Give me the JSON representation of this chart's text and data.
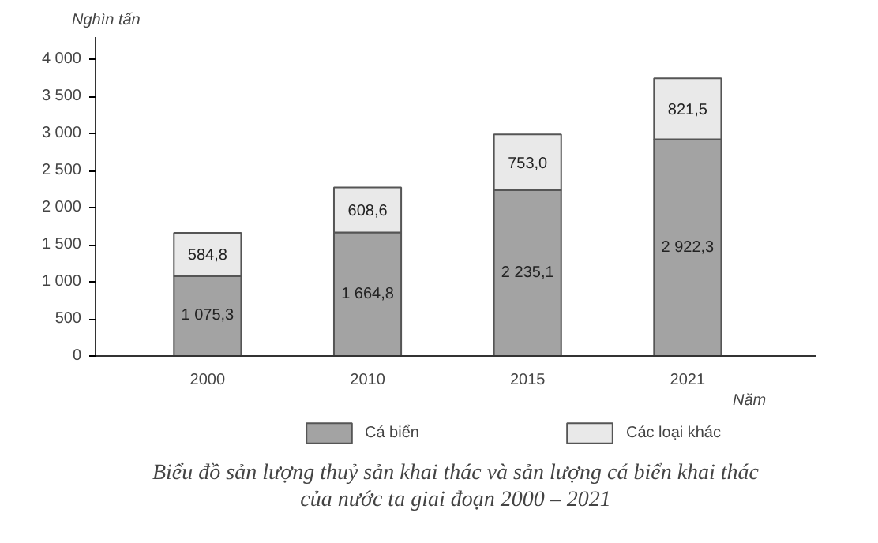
{
  "chart_data": {
    "type": "bar",
    "stacked": true,
    "ylabel": "Nghìn tấn",
    "xlabel": "Năm",
    "title": "Biểu đồ sản lượng thuỷ sản khai thác và sản lượng cá biển khai thác của nước ta giai đoạn 2000 – 2021",
    "categories": [
      "2000",
      "2010",
      "2015",
      "2021"
    ],
    "series": [
      {
        "name": "Cá biển",
        "color": "#a3a3a3",
        "values": [
          1075.3,
          1664.8,
          2235.1,
          2922.3
        ],
        "value_labels": [
          "1 075,3",
          "1 664,8",
          "2 235,1",
          "2 922,3"
        ]
      },
      {
        "name": "Các loại khác",
        "color": "#e9e9e9",
        "values": [
          584.8,
          608.6,
          753.0,
          821.5
        ],
        "value_labels": [
          "584,8",
          "608,6",
          "753,0",
          "821,5"
        ]
      }
    ],
    "ylim": [
      0,
      4300
    ],
    "yticks": [
      0,
      {
        "value": 500,
        "label": "500"
      },
      {
        "value": 1000,
        "label": "1 000"
      },
      {
        "value": 1500,
        "label": "1 500"
      },
      {
        "value": 2000,
        "label": "2 000"
      },
      {
        "value": 2500,
        "label": "2 500"
      },
      {
        "value": 3000,
        "label": "3 000"
      },
      {
        "value": 3500,
        "label": "3 500"
      },
      {
        "value": 4000,
        "label": "4 000"
      }
    ],
    "grid": false,
    "legend": "bottom"
  }
}
